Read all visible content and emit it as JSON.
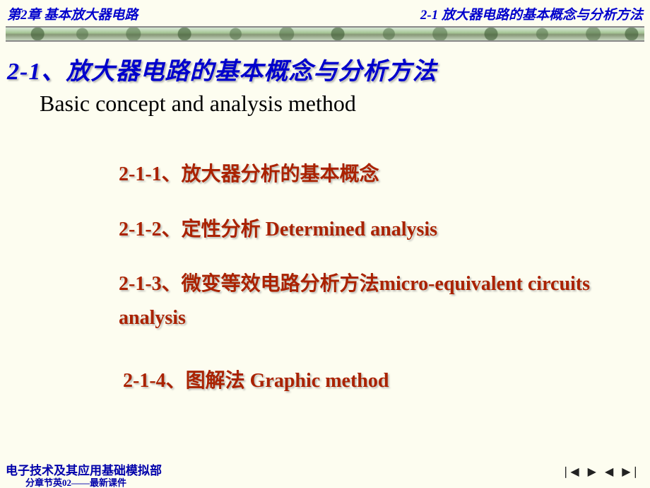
{
  "header": {
    "left": "第2章  基本放大器电路",
    "right": "2-1  放大器电路的基本概念与分析方法"
  },
  "title": {
    "main": "2-1、放大器电路的基本概念与分析方法",
    "sub": "Basic concept and analysis method"
  },
  "items": {
    "i1": "2-1-1、放大器分析的基本概念",
    "i2": "2-1-2、定性分析 Determined analysis",
    "i3": "2-1-3、微变等效电路分析方法micro-equivalent circuits analysis",
    "i4": "2-1-4、图解法 Graphic method"
  },
  "footer": {
    "line1": "电子技术及其应用基础模拟部",
    "line2": "分章节英02——最新课件"
  },
  "nav": {
    "first": "❘◀",
    "next": "▶",
    "prev": "◀",
    "last": "▶❘"
  },
  "colors": {
    "header_text": "#0000cc",
    "title_text": "#0000cc",
    "item_text": "#aa2200",
    "subtitle_text": "#000000",
    "footer_text": "#0000aa",
    "background": "#fdfdf0",
    "shadow": "rgba(150,150,150,0.7)"
  },
  "fonts": {
    "header_size": 19,
    "title_size": 34,
    "subtitle_size": 32,
    "item_size": 28,
    "footer_size": 17
  }
}
